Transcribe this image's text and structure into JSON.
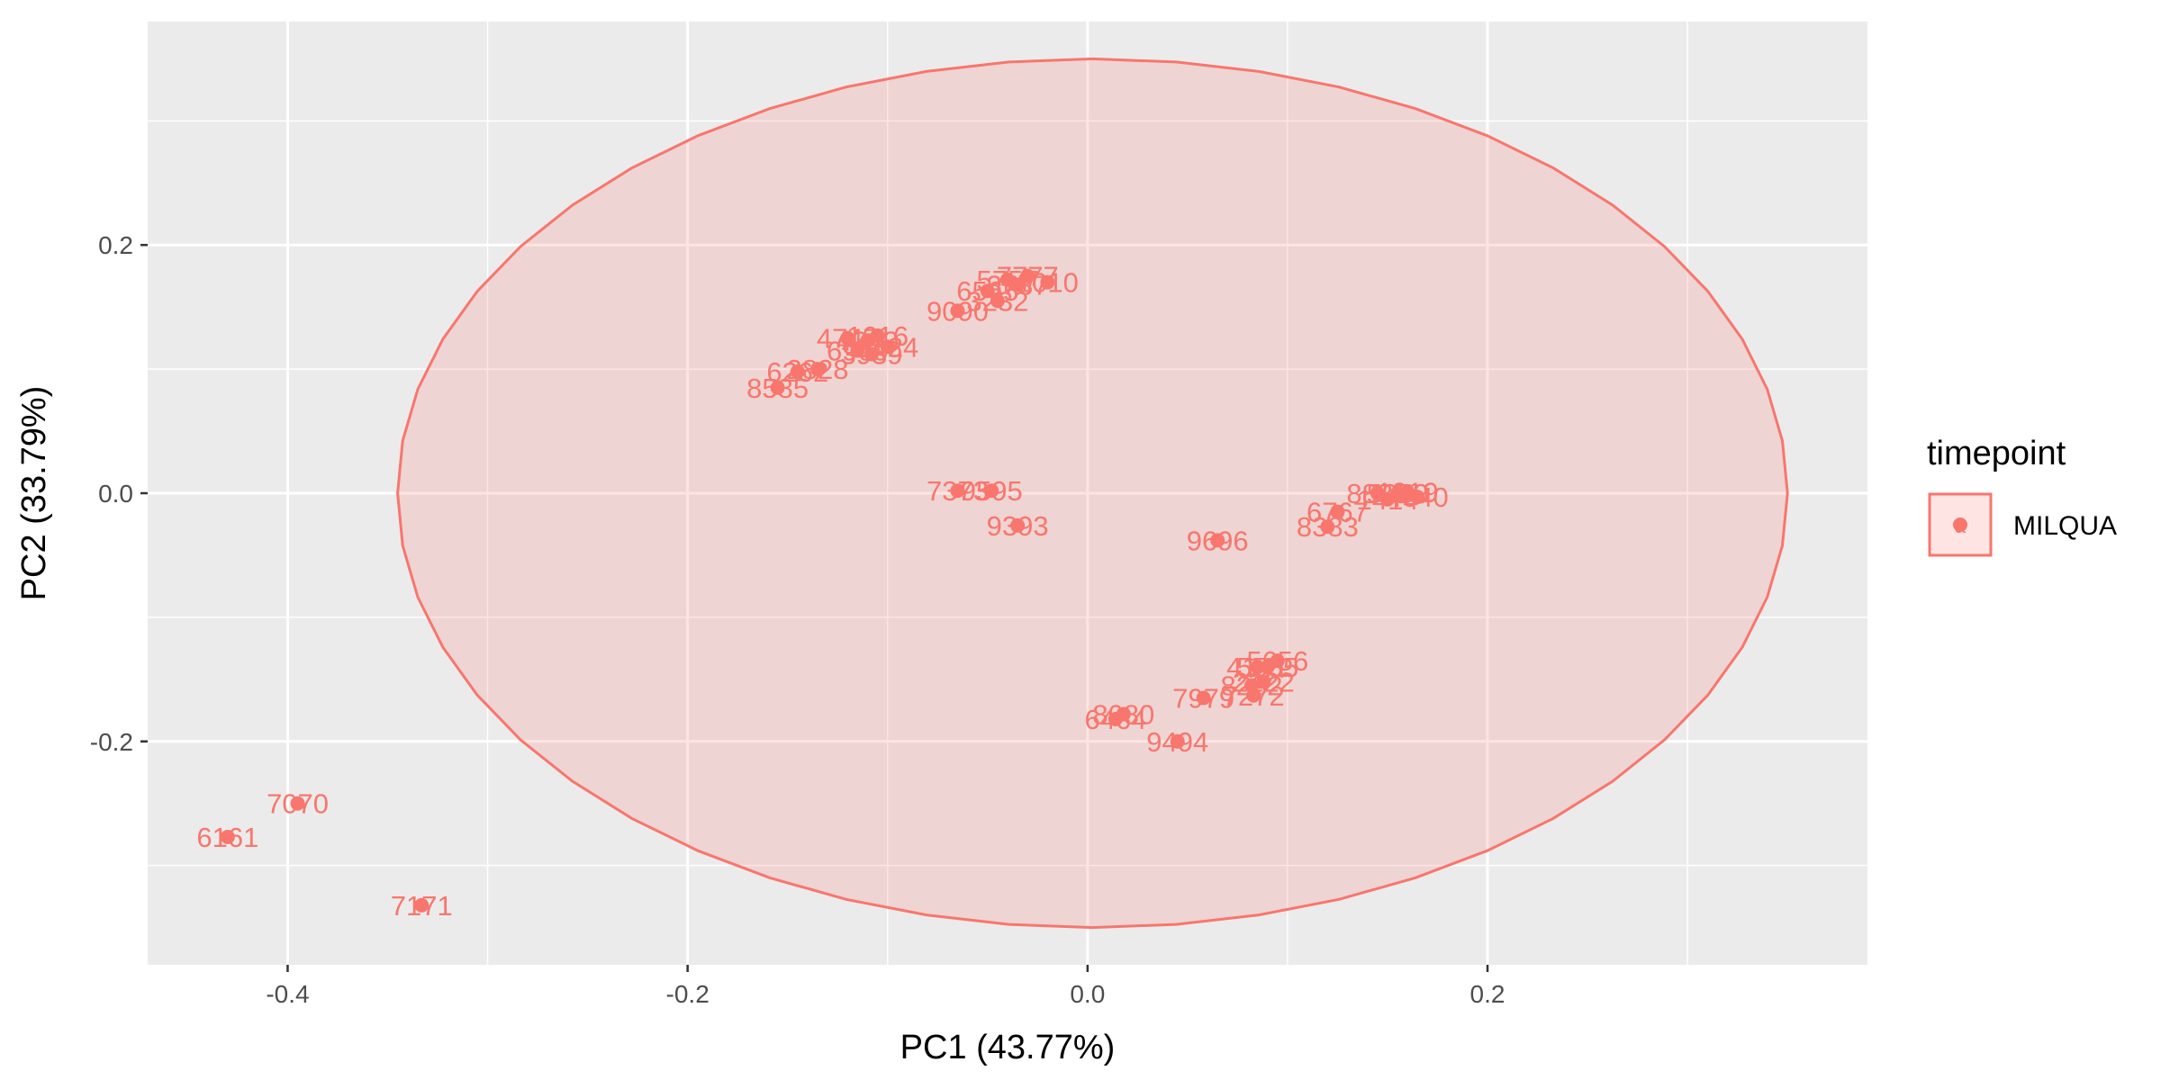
{
  "chart_data": {
    "type": "scatter",
    "xlabel": "PC1 (43.77%)",
    "ylabel": "PC2 (33.79%)",
    "xlim": [
      -0.47,
      0.39
    ],
    "ylim": [
      -0.38,
      0.38
    ],
    "x_ticks": [
      -0.4,
      -0.2,
      0.0,
      0.2
    ],
    "x_tick_labels": [
      "-0.4",
      "-0.2",
      "0.0",
      "0.2"
    ],
    "y_ticks": [
      -0.2,
      0.0,
      0.2
    ],
    "y_tick_labels": [
      "-0.2",
      "0.0",
      "0.2"
    ],
    "grid": true,
    "legend": {
      "title": "timepoint",
      "position": "right",
      "entries": [
        {
          "label": "MILQUA",
          "color": "#F8766D"
        }
      ]
    },
    "colors": {
      "series": "#F8766D",
      "panel_background": "#EBEBEB",
      "grid": "#FFFFFF",
      "ellipse_fill": "#F8766D"
    },
    "ellipse": {
      "center": [
        0.0025,
        0.0
      ],
      "radius_x": 0.3475,
      "radius_y": 0.35
    },
    "series": [
      {
        "name": "MILQUA",
        "points": [
          {
            "x": -0.43,
            "y": -0.277,
            "label": "6161"
          },
          {
            "x": -0.395,
            "y": -0.25,
            "label": "7070"
          },
          {
            "x": -0.333,
            "y": -0.332,
            "label": "7171"
          },
          {
            "x": -0.155,
            "y": 0.085,
            "label": "8585"
          },
          {
            "x": -0.145,
            "y": 0.098,
            "label": "6262"
          },
          {
            "x": -0.135,
            "y": 0.1,
            "label": "2828"
          },
          {
            "x": -0.12,
            "y": 0.125,
            "label": "4747"
          },
          {
            "x": -0.11,
            "y": 0.123,
            "label": "4343"
          },
          {
            "x": -0.105,
            "y": 0.127,
            "label": "1616"
          },
          {
            "x": -0.115,
            "y": 0.115,
            "label": "6969"
          },
          {
            "x": -0.108,
            "y": 0.112,
            "label": "3939"
          },
          {
            "x": -0.1,
            "y": 0.118,
            "label": "2424"
          },
          {
            "x": -0.065,
            "y": 0.147,
            "label": "9090"
          },
          {
            "x": -0.05,
            "y": 0.163,
            "label": "6565"
          },
          {
            "x": -0.045,
            "y": 0.155,
            "label": "3232"
          },
          {
            "x": -0.04,
            "y": 0.172,
            "label": "5757"
          },
          {
            "x": -0.035,
            "y": 0.168,
            "label": "3737"
          },
          {
            "x": -0.03,
            "y": 0.175,
            "label": "7777"
          },
          {
            "x": -0.02,
            "y": 0.17,
            "label": "1010"
          },
          {
            "x": -0.065,
            "y": 0.002,
            "label": "7373"
          },
          {
            "x": -0.048,
            "y": 0.002,
            "label": "9595"
          },
          {
            "x": -0.035,
            "y": -0.026,
            "label": "9393"
          },
          {
            "x": 0.065,
            "y": -0.038,
            "label": "9696"
          },
          {
            "x": 0.12,
            "y": -0.027,
            "label": "8383"
          },
          {
            "x": 0.125,
            "y": -0.015,
            "label": "6767"
          },
          {
            "x": 0.145,
            "y": 0.0,
            "label": "8888"
          },
          {
            "x": 0.155,
            "y": 0.0,
            "label": "5050"
          },
          {
            "x": 0.165,
            "y": -0.003,
            "label": "4040"
          },
          {
            "x": 0.16,
            "y": 0.001,
            "label": "1919"
          },
          {
            "x": 0.15,
            "y": -0.005,
            "label": "1414"
          },
          {
            "x": 0.085,
            "y": -0.14,
            "label": "4141"
          },
          {
            "x": 0.095,
            "y": -0.135,
            "label": "5656"
          },
          {
            "x": 0.09,
            "y": -0.14,
            "label": "5555"
          },
          {
            "x": 0.082,
            "y": -0.155,
            "label": "8282"
          },
          {
            "x": 0.088,
            "y": -0.152,
            "label": "2222"
          },
          {
            "x": 0.058,
            "y": -0.165,
            "label": "7979"
          },
          {
            "x": 0.083,
            "y": -0.163,
            "label": "7272"
          },
          {
            "x": 0.018,
            "y": -0.178,
            "label": "8080"
          },
          {
            "x": 0.014,
            "y": -0.182,
            "label": "6464"
          },
          {
            "x": 0.045,
            "y": -0.2,
            "label": "9494"
          }
        ]
      }
    ]
  }
}
